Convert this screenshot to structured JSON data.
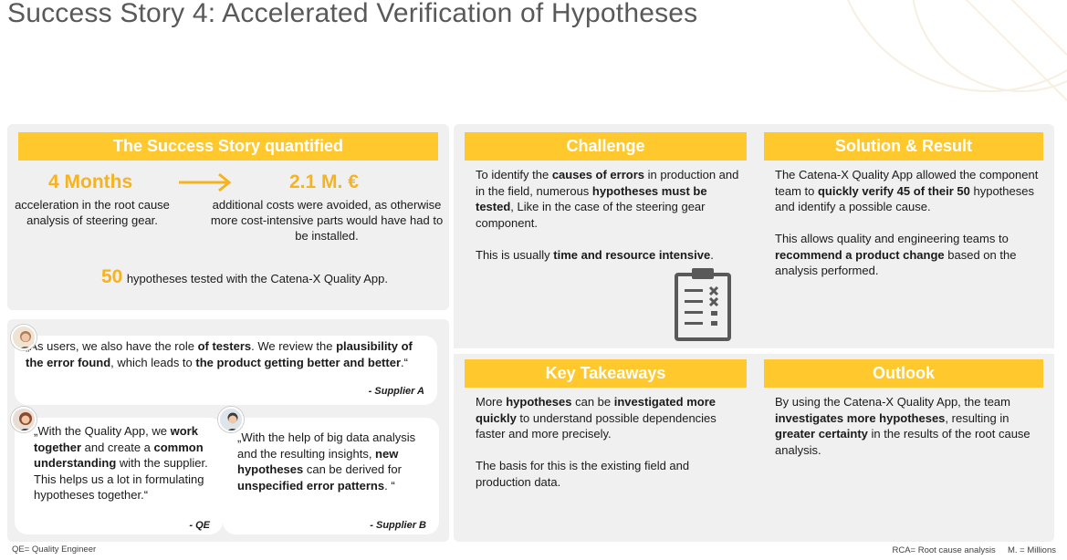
{
  "title": "Success Story 4: Accelerated Verification of Hypotheses",
  "quantified": {
    "header": "The Success Story quantified",
    "metric1_value": "4 Months",
    "metric1_desc": "acceleration in the root cause analysis of steering gear.",
    "metric2_value": "2.1 M. €",
    "metric2_desc": "additional costs were avoided, as otherwise more cost-intensive parts would have had to be installed.",
    "hyp_count": "50",
    "hyp_text": "hypotheses tested with the Catena-X Quality App."
  },
  "quotes": [
    {
      "parts": [
        "„As users, we also have the role ",
        "of testers",
        ". We review the ",
        "plausibility of the error found",
        ", which leads to ",
        "the product getting better and better",
        ".“"
      ],
      "source": "- Supplier A"
    },
    {
      "parts": [
        "„With the Quality App, we ",
        "work together",
        " and create a ",
        "common understanding",
        " with the supplier. This helps us a lot in formulating hypotheses together.“"
      ],
      "source": "- QE"
    },
    {
      "parts": [
        "„With the help of big data analysis and the resulting insights, ",
        "new hypotheses",
        " can be derived for ",
        "unspecified error patterns",
        ". “"
      ],
      "source": "- Supplier B"
    }
  ],
  "challenge": {
    "header": "Challenge",
    "p1_parts": [
      "To identify the ",
      "causes of errors",
      " in production and in the field, numerous ",
      "hypotheses must be tested",
      ", Like in the case of the steering gear component."
    ],
    "p2_parts": [
      "This is usually ",
      "time and resource intensive",
      "."
    ]
  },
  "solution": {
    "header": "Solution & Result",
    "p1_parts": [
      "The Catena-X Quality App allowed the component team to ",
      "quickly verify 45 of their 50",
      " hypotheses and identify a possible cause."
    ],
    "p2_parts": [
      "This allows quality and engineering teams to ",
      "recommend a product change",
      " based on the analysis performed."
    ]
  },
  "takeaways": {
    "header": "Key Takeaways",
    "p1_parts": [
      "More ",
      "hypotheses",
      " can be ",
      "investigated more quickly",
      " to understand possible dependencies faster and more precisely."
    ],
    "p2": "The basis for this is the existing field and production data."
  },
  "outlook": {
    "header": "Outlook",
    "p1_parts": [
      "By using the Catena-X Quality App, the team ",
      "investigates more hypotheses",
      ", resulting in ",
      "greater certainty",
      " in the results of the root cause analysis."
    ]
  },
  "footer": {
    "left": "QE= Quality Engineer",
    "right": "RCA= Root cause analysis     M. = Millions"
  },
  "colors": {
    "accent": "#ffc92e",
    "metric": "#f5b320",
    "panel": "#f0f0f0",
    "title": "#595959"
  },
  "icons": {
    "checklist": "clipboard-checklist-icon",
    "arrow": "right-arrow-icon"
  }
}
